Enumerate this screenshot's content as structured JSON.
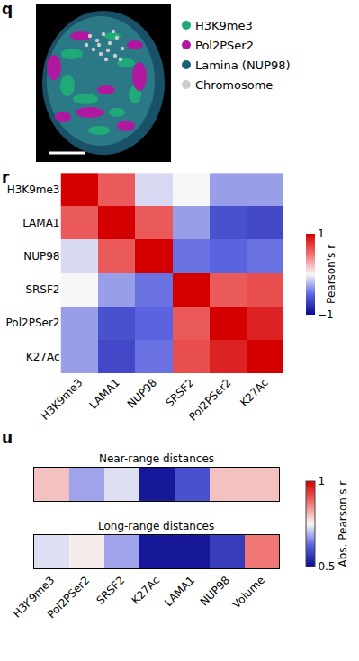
{
  "chart_data": [
    {
      "label": "q",
      "type": "image",
      "legend": [
        {
          "name": "H3K9me3",
          "color": "#1faa77"
        },
        {
          "name": "Pol2PSer2",
          "color": "#b0199f"
        },
        {
          "name": "Lamina (NUP98)",
          "color": "#1d5f7a"
        },
        {
          "name": "Chromosome",
          "color": "#cccccc"
        }
      ]
    },
    {
      "label": "r",
      "type": "heatmap",
      "x": [
        "H3K9me3",
        "LAMA1",
        "NUP98",
        "SRSF2",
        "Pol2PSer2",
        "K27Ac"
      ],
      "y": [
        "H3K9me3",
        "LAMA1",
        "NUP98",
        "SRSF2",
        "Pol2PSer2",
        "K27Ac"
      ],
      "z": [
        [
          1,
          0.6,
          -0.1,
          0,
          -0.3,
          -0.3
        ],
        [
          0.6,
          1,
          0.6,
          -0.3,
          -0.6,
          -0.65
        ],
        [
          -0.1,
          0.6,
          1,
          -0.45,
          -0.5,
          -0.45
        ],
        [
          0,
          -0.3,
          -0.45,
          1,
          0.6,
          0.65
        ],
        [
          -0.3,
          -0.6,
          -0.5,
          0.6,
          1,
          0.85
        ],
        [
          -0.3,
          -0.65,
          -0.45,
          0.65,
          0.85,
          1
        ]
      ],
      "colorbar": {
        "title": "Pearson's r",
        "range": [
          -1,
          1
        ],
        "ticks": [
          {
            "value": -1,
            "label": "−1"
          },
          1
        ]
      }
    },
    {
      "label": "u",
      "type": "heatmap",
      "categories": [
        "H3K9me3",
        "Pol2PSer2",
        "SRSF2",
        "K27Ac",
        "LAMA1",
        "NUP98",
        "Volume"
      ],
      "rows": [
        {
          "title": "Near-range distances",
          "values": [
            0.8,
            0.68,
            0.73,
            0.52,
            0.6,
            0.8,
            0.8
          ]
        },
        {
          "title": "Long-range distances",
          "values": [
            0.73,
            0.76,
            0.68,
            0.52,
            0.52,
            0.57,
            0.87
          ]
        }
      ],
      "colorbar": {
        "title": "Abs. Pearson's r",
        "range": [
          0.5,
          1
        ],
        "ticks": [
          0.5,
          1
        ]
      }
    }
  ]
}
